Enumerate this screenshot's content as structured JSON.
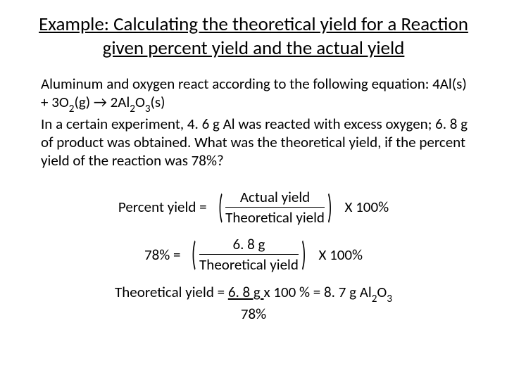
{
  "title": "Example: Calculating the theoretical yield for a Reaction given percent yield and the actual yield",
  "problem": {
    "intro": "Aluminum and oxygen react according to the following equation: ",
    "equation_pre": "4Al(s) + 3O",
    "equation_sub1": "2",
    "equation_mid1": "(g) → 2Al",
    "equation_sub2": "2",
    "equation_mid2": "O",
    "equation_sub3": "3",
    "equation_post": "(s)",
    "rest": "In a certain experiment, 4. 6 g Al was reacted with excess oxygen; 6. 8 g of product was obtained. What was the theoretical yield, if the percent yield of the reaction was 78%?"
  },
  "formula1": {
    "lhs": "Percent yield =",
    "numerator": "Actual yield",
    "denominator": "Theoretical yield",
    "rhs": "X 100%"
  },
  "formula2": {
    "lhs": "78%  =",
    "numerator": "6. 8 g",
    "denominator": "Theoretical yield",
    "rhs": "X 100%"
  },
  "answer": {
    "line1_pre": "Theoretical yield = ",
    "line1_underlined": "6. 8 g ",
    "line1_post1": "x 100 % = 8. 7 g Al",
    "line1_sub1": "2",
    "line1_mid": "O",
    "line1_sub2": "3",
    "line2": "78%"
  }
}
